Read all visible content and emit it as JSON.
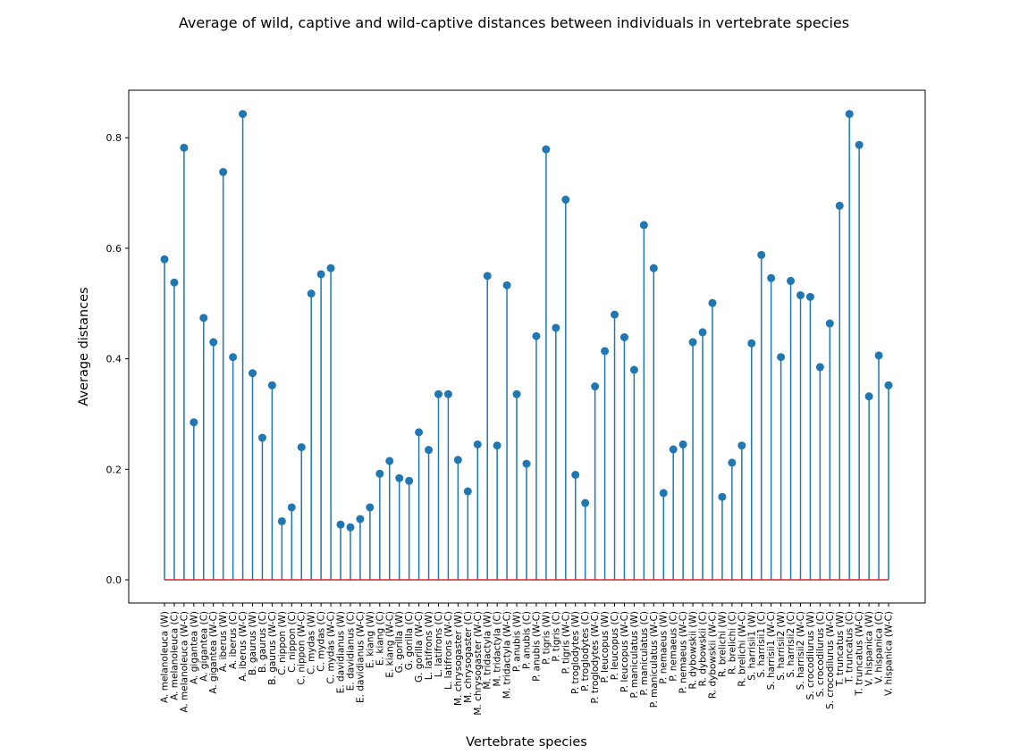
{
  "chart_data": {
    "type": "stem",
    "title": "Average of wild, captive and wild-captive distances between individuals in vertebrate species",
    "xlabel": "Vertebrate species",
    "ylabel": "Average distances",
    "ylim": [
      -0.042,
      0.886
    ],
    "yticks": [
      0.0,
      0.2,
      0.4,
      0.6,
      0.8
    ],
    "ytick_labels": [
      "0.0",
      "0.2",
      "0.4",
      "0.6",
      "0.8"
    ],
    "baseline": 0.0,
    "grid": false,
    "colors": {
      "stem": "#1f77b4",
      "marker": "#1f77b4",
      "baseline": "#d62728"
    },
    "categories": [
      "A. melanoleuca (W)",
      "A. melanoleuca (C)",
      "A. melanoleuca (W-C)",
      "A. gigantea (W)",
      "A. gigantea (C)",
      "A. gigantea (W-C)",
      "A. iberus (W)",
      "A. iberus (C)",
      "A. iberus (W-C)",
      "B. gaurus (W)",
      "B. gaurus (C)",
      "B. gaurus (W-C)",
      "C. nippon (W)",
      "C. nippon (C)",
      "C. nippon (W-C)",
      "C. mydas (W)",
      "C. mydas (C)",
      "C. mydas (W-C)",
      "E. davidianus (W)",
      "E. davidianus (C)",
      "E. davidianus (W-C)",
      "E. kiang (W)",
      "E. kiang (C)",
      "E. kiang (W-C)",
      "G. gorilla (W)",
      "G. gorilla (C)",
      "G. gorilla (W-C)",
      "L. latifrons (W)",
      "L. latifrons (C)",
      "L. latifrons (W-C)",
      "M. chrysogaster (W)",
      "M. chrysogaster (C)",
      "M. chrysogaster (W-C)",
      "M. tridactyla (W)",
      "M. tridactyla (C)",
      "M. tridactyla (W-C)",
      "P. anubis (W)",
      "P. anubis (C)",
      "P. anubis (W-C)",
      "P. tigris (W)",
      "P. tigris (C)",
      "P. tigris (W-C)",
      "P. troglodytes (W)",
      "P. troglodytes (C)",
      "P. troglodytes (W-C)",
      "P. leucopus (W)",
      "P. leucopus (C)",
      "P. leucopus (W-C)",
      "P. maniculatus (W)",
      "P. maniculatus (C)",
      "P. maniculatus (W-C)",
      "P. nemaeus (W)",
      "P. nemaeus (C)",
      "P. nemaeus (W-C)",
      "R. dybowskii (W)",
      "R. dybowskii (C)",
      "R. dybowskii (W-C)",
      "R. brelichi (W)",
      "R. brelichi (C)",
      "R. brelichi (W-C)",
      "S. harrisii1 (W)",
      "S. harrisii1 (C)",
      "S. harrisii1 (W-C)",
      "S. harrisii2 (W)",
      "S. harrisii2 (C)",
      "S. harrisii2 (W-C)",
      "S. crocodilurus (W)",
      "S. crocodilurus (C)",
      "S. crocodilurus (W-C)",
      "T. truncatus (W)",
      "T. truncatus (C)",
      "T. truncatus (W-C)",
      "V. hispanica (W)",
      "V. hispanica (C)",
      "V. hispanica (W-C)"
    ],
    "values": [
      0.58,
      0.538,
      0.782,
      0.285,
      0.474,
      0.43,
      0.738,
      0.403,
      0.843,
      0.374,
      0.257,
      0.352,
      0.106,
      0.131,
      0.24,
      0.518,
      0.553,
      0.564,
      0.1,
      0.095,
      0.11,
      0.131,
      0.192,
      0.215,
      0.184,
      0.179,
      0.267,
      0.235,
      0.336,
      0.336,
      0.217,
      0.16,
      0.245,
      0.55,
      0.243,
      0.533,
      0.336,
      0.21,
      0.441,
      0.779,
      0.456,
      0.688,
      0.19,
      0.139,
      0.35,
      0.414,
      0.48,
      0.439,
      0.38,
      0.642,
      0.564,
      0.157,
      0.236,
      0.245,
      0.43,
      0.448,
      0.501,
      0.15,
      0.212,
      0.243,
      0.428,
      0.588,
      0.546,
      0.403,
      0.541,
      0.515,
      0.512,
      0.385,
      0.464,
      0.677,
      0.843,
      0.787,
      0.332,
      0.406,
      0.352
    ]
  }
}
